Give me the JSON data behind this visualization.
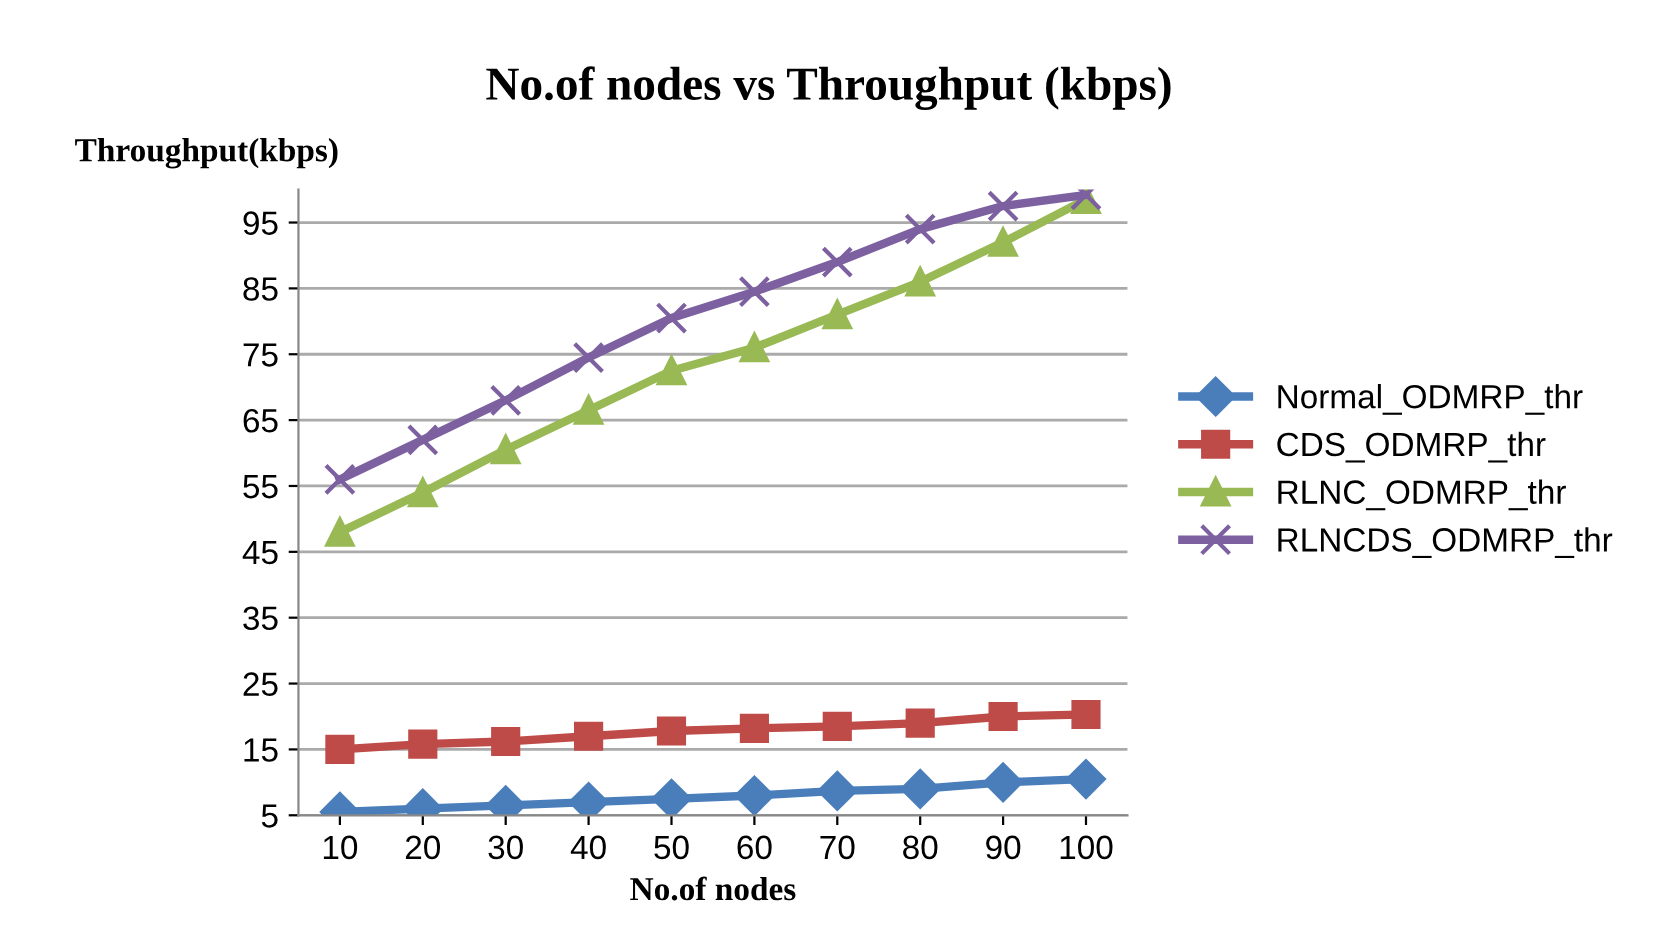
{
  "chart_data": {
    "type": "line",
    "title": "No.of nodes vs Throughput (kbps)",
    "xlabel": "No.of nodes",
    "ylabel": "Throughput(kbps)",
    "categories": [
      "10",
      "20",
      "30",
      "40",
      "50",
      "60",
      "70",
      "80",
      "90",
      "100"
    ],
    "series": [
      {
        "name": "Normal_ODMRP_thr",
        "color": "#4a7ebb",
        "marker": "diamond",
        "values": [
          5.5,
          6,
          6.5,
          7,
          7.5,
          8,
          8.7,
          9,
          10,
          10.5
        ]
      },
      {
        "name": "CDS_ODMRP_thr",
        "color": "#be4b48",
        "marker": "square",
        "values": [
          15,
          15.8,
          16.2,
          17,
          17.8,
          18.2,
          18.5,
          19,
          20,
          20.3
        ]
      },
      {
        "name": "RLNC_ODMRP_thr",
        "color": "#98b954",
        "marker": "triangle",
        "values": [
          48,
          54,
          60.5,
          66.5,
          72.5,
          76,
          81,
          86,
          92,
          98.5
        ]
      },
      {
        "name": "RLNCDS_ODMRP_thr",
        "color": "#7d60a0",
        "marker": "cross",
        "values": [
          56,
          62,
          68,
          74.5,
          80.5,
          84.5,
          89,
          94,
          97.5,
          99.2
        ]
      }
    ],
    "ylim": [
      5,
      100
    ],
    "yticks": [
      5,
      15,
      25,
      35,
      45,
      55,
      65,
      75,
      85,
      95
    ],
    "grid": "y",
    "legend": "right"
  }
}
